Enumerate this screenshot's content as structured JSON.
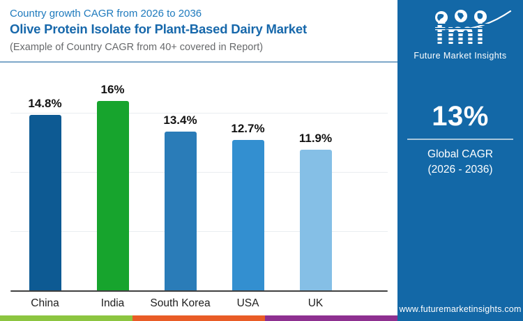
{
  "header": {
    "kicker": "Country growth CAGR from 2026 to 2036",
    "title": "Olive Protein Isolate for Plant-Based Dairy Market",
    "subtitle": "(Example of Country CAGR from 40+ covered in Report)"
  },
  "chart_data": {
    "type": "bar",
    "title": "Country growth CAGR from 2026 to 2036 — Olive Protein Isolate for Plant-Based Dairy Market",
    "categories": [
      "China",
      "India",
      "South Korea",
      "USA",
      "UK"
    ],
    "values": [
      14.8,
      16,
      13.4,
      12.7,
      11.9
    ],
    "value_labels": [
      "14.8%",
      "16%",
      "13.4%",
      "12.7%",
      "11.9%"
    ],
    "bar_colors": [
      "#0d5a93",
      "#17a42d",
      "#2a7cb8",
      "#338fd0",
      "#85bfe6"
    ],
    "xlabel": "",
    "ylabel": "",
    "ylim": [
      0,
      17
    ],
    "gridline_values": [
      5,
      10,
      15
    ],
    "grid": "on",
    "legend": "none"
  },
  "sidebar": {
    "background": "#1368a7",
    "logo": {
      "brand": "fmi",
      "caption": "Future Market Insights",
      "icons": [
        "globe-americas-icon",
        "globe-asia-icon",
        "globe-africa-icon",
        "orbit-swoosh"
      ]
    },
    "stat_value": "13%",
    "stat_label_line1": "Global CAGR",
    "stat_label_line2": "(2026 - 2036)",
    "website": "www.futuremarketinsights.com"
  },
  "footer_strip_colors": [
    "#8cc540",
    "#e95c26",
    "#8e3090"
  ]
}
